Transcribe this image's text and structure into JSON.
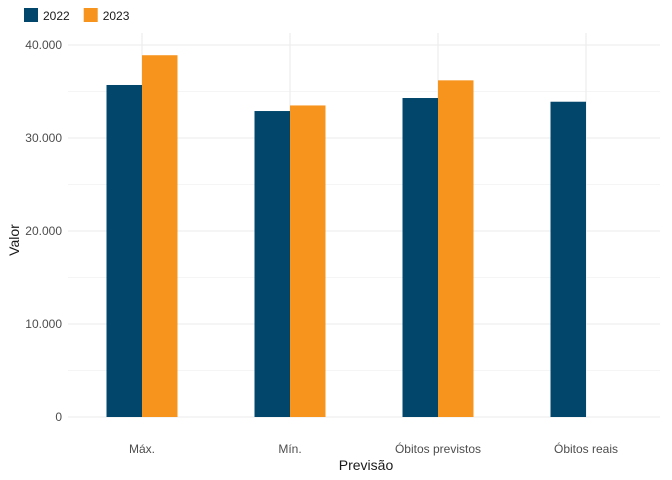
{
  "chart_data": {
    "type": "bar",
    "categories": [
      "Máx.",
      "Mín.",
      "Óbitos previstos",
      "Óbitos reais"
    ],
    "series": [
      {
        "name": "2022",
        "color": "#02476b",
        "values": [
          35700,
          32900,
          34300,
          33900
        ]
      },
      {
        "name": "2023",
        "color": "#f7941d",
        "values": [
          38900,
          33500,
          36200,
          null
        ]
      }
    ],
    "xlabel": "Previsão",
    "ylabel": "Valor",
    "ylim": [
      0,
      40000
    ],
    "yticks": [
      0,
      10000,
      20000,
      30000,
      40000
    ],
    "ytick_labels": [
      "0",
      "10.000",
      "20.000",
      "30.000",
      "40.000"
    ],
    "grid": true,
    "legend_position": "top-left"
  }
}
